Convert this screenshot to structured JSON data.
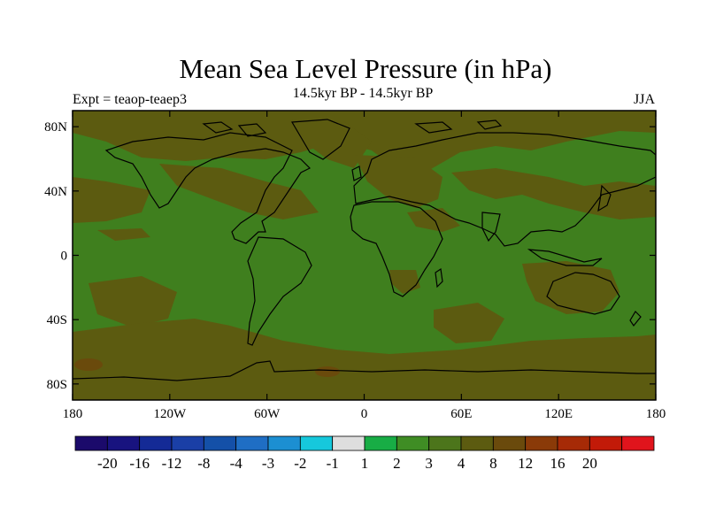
{
  "title": "Mean Sea Level Pressure (in hPa)",
  "subtitle": "14.5kyr BP - 14.5kyr BP",
  "left_string": "Expt = teaop-teaep3",
  "right_string": "JJA",
  "map": {
    "projection": "cylindrical-equidistant",
    "lon_range": [
      -180,
      180
    ],
    "lat_range": [
      -90,
      90
    ],
    "background_field_color": "#3f7f1e",
    "anomaly_field_color": "#5c5b10",
    "land_outline_color": "#000000"
  },
  "lat_ticks": [
    {
      "value": 80,
      "label": "80N"
    },
    {
      "value": 40,
      "label": "40N"
    },
    {
      "value": 0,
      "label": "0"
    },
    {
      "value": -40,
      "label": "40S"
    },
    {
      "value": -80,
      "label": "80S"
    }
  ],
  "lon_ticks": [
    {
      "value": -180,
      "label": "180"
    },
    {
      "value": -120,
      "label": "120W"
    },
    {
      "value": -60,
      "label": "60W"
    },
    {
      "value": 0,
      "label": "0"
    },
    {
      "value": 60,
      "label": "60E"
    },
    {
      "value": 120,
      "label": "120E"
    },
    {
      "value": 180,
      "label": "180"
    }
  ],
  "colorbar": {
    "colors": [
      "#1b0a6b",
      "#18137f",
      "#142a96",
      "#1a3fa6",
      "#1450a8",
      "#1f6ec4",
      "#1c8fd2",
      "#16c8dc",
      "#dedede",
      "#18ad45",
      "#3f8d24",
      "#4c751b",
      "#5c5b10",
      "#6a4a0c",
      "#8a3a08",
      "#a62a06",
      "#c21a08",
      "#e0141c"
    ],
    "labels": [
      "-20",
      "-16",
      "-12",
      "-8",
      "-4",
      "-3",
      "-2",
      "-1",
      "1",
      "2",
      "3",
      "4",
      "8",
      "12",
      "16",
      "20"
    ]
  }
}
